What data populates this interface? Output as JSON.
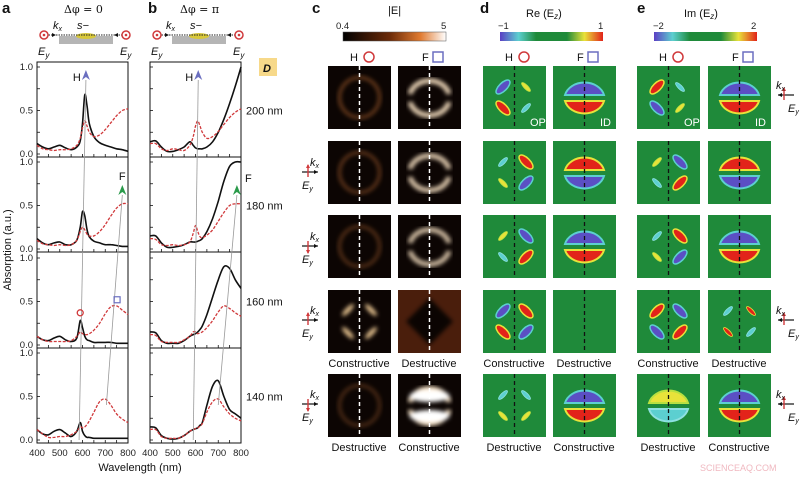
{
  "panels": {
    "a": {
      "letter": "a",
      "title": "Δφ = 0"
    },
    "b": {
      "letter": "b",
      "title": "Δφ = π"
    },
    "c": {
      "letter": "c",
      "colorbar_label": "|E|",
      "cmin": "0.4",
      "cmax": "5"
    },
    "d": {
      "letter": "d",
      "colorbar_label": "Re (E",
      "colorbar_sub": "z",
      "colorbar_close": ")",
      "cmin": "−1",
      "cmax": "1",
      "tag_h": "OP",
      "tag_f": "ID"
    },
    "e": {
      "letter": "e",
      "colorbar_label": "Im (E",
      "colorbar_sub": "z",
      "colorbar_close": ")",
      "cmin": "−2",
      "cmax": "2",
      "tag_h": "OP",
      "tag_f": "ID"
    }
  },
  "schematic": {
    "k": "k",
    "k_sub": "x",
    "s": "s−",
    "E": "E",
    "E_sub": "y"
  },
  "diameter_label": "D",
  "mode_labels": {
    "H": "H",
    "F": "F"
  },
  "row4_labels": [
    "Constructive",
    "Destructive"
  ],
  "row5_labels": [
    "Destructive",
    "Constructive"
  ],
  "watermark": "SCIENCEAQ.COM",
  "colors": {
    "solid": "#111111",
    "dashed": "#d0393b",
    "H_arrow": "#6b6fc0",
    "F_arrow": "#2a9a4a",
    "map_background": "#1f8a3a",
    "map_red": "#e2231a",
    "map_blue": "#5b4fc4",
    "map_yellow": "#e8e23a",
    "map_cyan": "#5ccfd0"
  },
  "chart_data": [
    {
      "panel": "a",
      "type": "line",
      "title": "Δφ = 0",
      "xlabel": "Wavelength (nm)",
      "ylabel": "Absorption (a.u.)",
      "xlim": [
        400,
        800
      ],
      "ylim": [
        0,
        1
      ],
      "xticks": [
        "400",
        "500",
        "600",
        "700",
        "800"
      ],
      "yticks": [
        "0.0",
        "0.5",
        "1.0"
      ],
      "x": [
        400,
        425,
        450,
        475,
        500,
        525,
        550,
        575,
        590,
        600,
        610,
        620,
        630,
        650,
        675,
        700,
        725,
        750,
        775,
        800
      ],
      "subplots": [
        {
          "label": "200 nm",
          "series": [
            {
              "style": "solid",
              "values": [
                0.12,
                0.08,
                0.06,
                0.08,
                0.1,
                0.07,
                0.05,
                0.08,
                0.15,
                0.35,
                0.68,
                0.55,
                0.35,
                0.2,
                0.13,
                0.1,
                0.08,
                0.06,
                0.05,
                0.03
              ]
            },
            {
              "style": "dashed",
              "values": [
                0.1,
                0.06,
                0.05,
                0.04,
                0.05,
                0.05,
                0.06,
                0.1,
                0.18,
                0.3,
                0.38,
                0.32,
                0.25,
                0.2,
                0.22,
                0.28,
                0.36,
                0.44,
                0.5,
                0.52
              ]
            }
          ]
        },
        {
          "label": "180 nm",
          "series": [
            {
              "style": "solid",
              "values": [
                0.12,
                0.07,
                0.05,
                0.07,
                0.08,
                0.05,
                0.05,
                0.1,
                0.25,
                0.43,
                0.38,
                0.22,
                0.14,
                0.09,
                0.07,
                0.05,
                0.05,
                0.04,
                0.03,
                0.03
              ]
            },
            {
              "style": "dashed",
              "values": [
                0.1,
                0.06,
                0.05,
                0.04,
                0.05,
                0.04,
                0.05,
                0.1,
                0.2,
                0.25,
                0.22,
                0.17,
                0.15,
                0.15,
                0.2,
                0.28,
                0.38,
                0.47,
                0.52,
                0.52
              ]
            }
          ]
        },
        {
          "label": "160 nm",
          "series": [
            {
              "style": "solid",
              "values": [
                0.1,
                0.06,
                0.05,
                0.08,
                0.1,
                0.06,
                0.04,
                0.08,
                0.28,
                0.2,
                0.1,
                0.06,
                0.05,
                0.03,
                0.03,
                0.03,
                0.03,
                0.02,
                0.02,
                0.02
              ]
            },
            {
              "style": "dashed",
              "values": [
                0.1,
                0.06,
                0.04,
                0.04,
                0.04,
                0.04,
                0.05,
                0.1,
                0.15,
                0.13,
                0.12,
                0.12,
                0.13,
                0.17,
                0.25,
                0.36,
                0.44,
                0.45,
                0.4,
                0.35
              ]
            }
          ]
        },
        {
          "label": "140 nm",
          "series": [
            {
              "style": "solid",
              "values": [
                0.12,
                0.07,
                0.06,
                0.1,
                0.12,
                0.08,
                0.04,
                0.1,
                0.2,
                0.1,
                0.05,
                0.03,
                0.03,
                0.02,
                0.02,
                0.02,
                0.02,
                0.02,
                0.02,
                0.02
              ]
            },
            {
              "style": "dashed",
              "values": [
                0.12,
                0.07,
                0.03,
                0.03,
                0.04,
                0.04,
                0.06,
                0.1,
                0.15,
                0.14,
                0.15,
                0.18,
                0.22,
                0.32,
                0.44,
                0.47,
                0.4,
                0.3,
                0.24,
                0.2
              ]
            }
          ]
        }
      ]
    },
    {
      "panel": "b",
      "type": "line",
      "title": "Δφ = π",
      "xlabel": "Wavelength (nm)",
      "ylabel": "Absorption (a.u.)",
      "xlim": [
        400,
        800
      ],
      "ylim": [
        0,
        1
      ],
      "xticks": [
        "400",
        "500",
        "600",
        "700",
        "800"
      ],
      "x": [
        400,
        425,
        450,
        475,
        500,
        525,
        550,
        575,
        590,
        600,
        610,
        620,
        630,
        650,
        675,
        700,
        725,
        750,
        775,
        800
      ],
      "subplots": [
        {
          "label": "200 nm",
          "series": [
            {
              "style": "solid",
              "values": [
                0.14,
                0.15,
                0.08,
                0.03,
                0.03,
                0.05,
                0.08,
                0.14,
                0.1,
                0.07,
                0.06,
                0.06,
                0.06,
                0.08,
                0.14,
                0.25,
                0.4,
                0.58,
                0.78,
                1.0
              ]
            },
            {
              "style": "dashed",
              "values": [
                0.12,
                0.12,
                0.06,
                0.04,
                0.06,
                0.05,
                0.04,
                0.1,
                0.2,
                0.32,
                0.38,
                0.32,
                0.25,
                0.18,
                0.2,
                0.26,
                0.34,
                0.42,
                0.48,
                0.52
              ]
            }
          ]
        },
        {
          "label": "180 nm",
          "series": [
            {
              "style": "solid",
              "values": [
                0.15,
                0.15,
                0.07,
                0.02,
                0.02,
                0.03,
                0.05,
                0.08,
                0.08,
                0.08,
                0.09,
                0.1,
                0.12,
                0.2,
                0.35,
                0.55,
                0.78,
                0.95,
                1.0,
                1.0
              ]
            },
            {
              "style": "dashed",
              "values": [
                0.12,
                0.11,
                0.05,
                0.04,
                0.05,
                0.04,
                0.05,
                0.08,
                0.18,
                0.27,
                0.2,
                0.14,
                0.13,
                0.16,
                0.22,
                0.32,
                0.42,
                0.5,
                0.52,
                0.52
              ]
            }
          ]
        },
        {
          "label": "160 nm",
          "series": [
            {
              "style": "solid",
              "values": [
                0.15,
                0.14,
                0.05,
                0.02,
                0.02,
                0.02,
                0.05,
                0.1,
                0.12,
                0.13,
                0.15,
                0.18,
                0.22,
                0.35,
                0.55,
                0.75,
                0.9,
                0.88,
                0.75,
                0.65
              ]
            },
            {
              "style": "dashed",
              "values": [
                0.12,
                0.11,
                0.04,
                0.03,
                0.03,
                0.03,
                0.06,
                0.1,
                0.15,
                0.15,
                0.13,
                0.14,
                0.15,
                0.2,
                0.28,
                0.38,
                0.45,
                0.42,
                0.37,
                0.33
              ]
            }
          ]
        },
        {
          "label": "140 nm",
          "series": [
            {
              "style": "solid",
              "values": [
                0.15,
                0.14,
                0.05,
                0.02,
                0.01,
                0.02,
                0.05,
                0.1,
                0.12,
                0.13,
                0.14,
                0.17,
                0.2,
                0.4,
                0.62,
                0.68,
                0.5,
                0.35,
                0.3,
                0.25
              ]
            },
            {
              "style": "dashed",
              "values": [
                0.12,
                0.12,
                0.04,
                0.02,
                0.02,
                0.02,
                0.05,
                0.1,
                0.12,
                0.13,
                0.14,
                0.16,
                0.19,
                0.32,
                0.44,
                0.47,
                0.38,
                0.3,
                0.25,
                0.22
              ]
            }
          ]
        }
      ]
    }
  ]
}
